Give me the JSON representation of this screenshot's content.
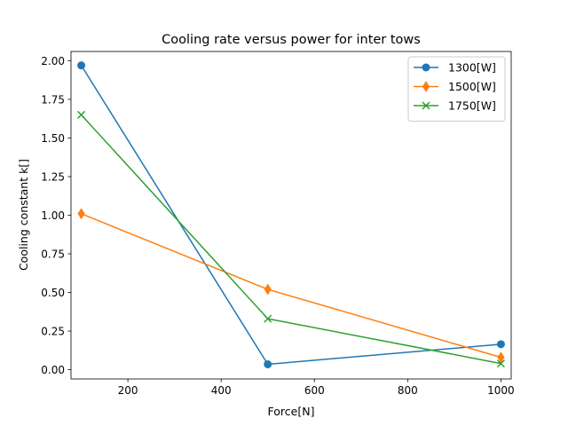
{
  "chart_data": {
    "type": "line",
    "title": "Cooling rate versus power for inter tows",
    "xlabel": "Force[N]",
    "ylabel": "Cooling constant k[]",
    "xlim": [
      78,
      1022
    ],
    "ylim": [
      -0.06,
      2.06
    ],
    "xticks": [
      200,
      400,
      600,
      800,
      1000
    ],
    "xtick_labels": [
      "200",
      "400",
      "600",
      "800",
      "1000"
    ],
    "yticks": [
      0.0,
      0.25,
      0.5,
      0.75,
      1.0,
      1.25,
      1.5,
      1.75,
      2.0
    ],
    "ytick_labels": [
      "0.00",
      "0.25",
      "0.50",
      "0.75",
      "1.00",
      "1.25",
      "1.50",
      "1.75",
      "2.00"
    ],
    "grid": false,
    "legend_position": "top-right",
    "x": [
      100,
      500,
      1000
    ],
    "series": [
      {
        "name": "1300[W]",
        "values": [
          1.97,
          0.035,
          0.165
        ],
        "color": "#1f77b4",
        "marker": "circle"
      },
      {
        "name": "1500[W]",
        "values": [
          1.01,
          0.52,
          0.08
        ],
        "color": "#ff7f0e",
        "marker": "thin-diamond"
      },
      {
        "name": "1750[W]",
        "values": [
          1.65,
          0.33,
          0.04
        ],
        "color": "#2ca02c",
        "marker": "x"
      }
    ]
  }
}
